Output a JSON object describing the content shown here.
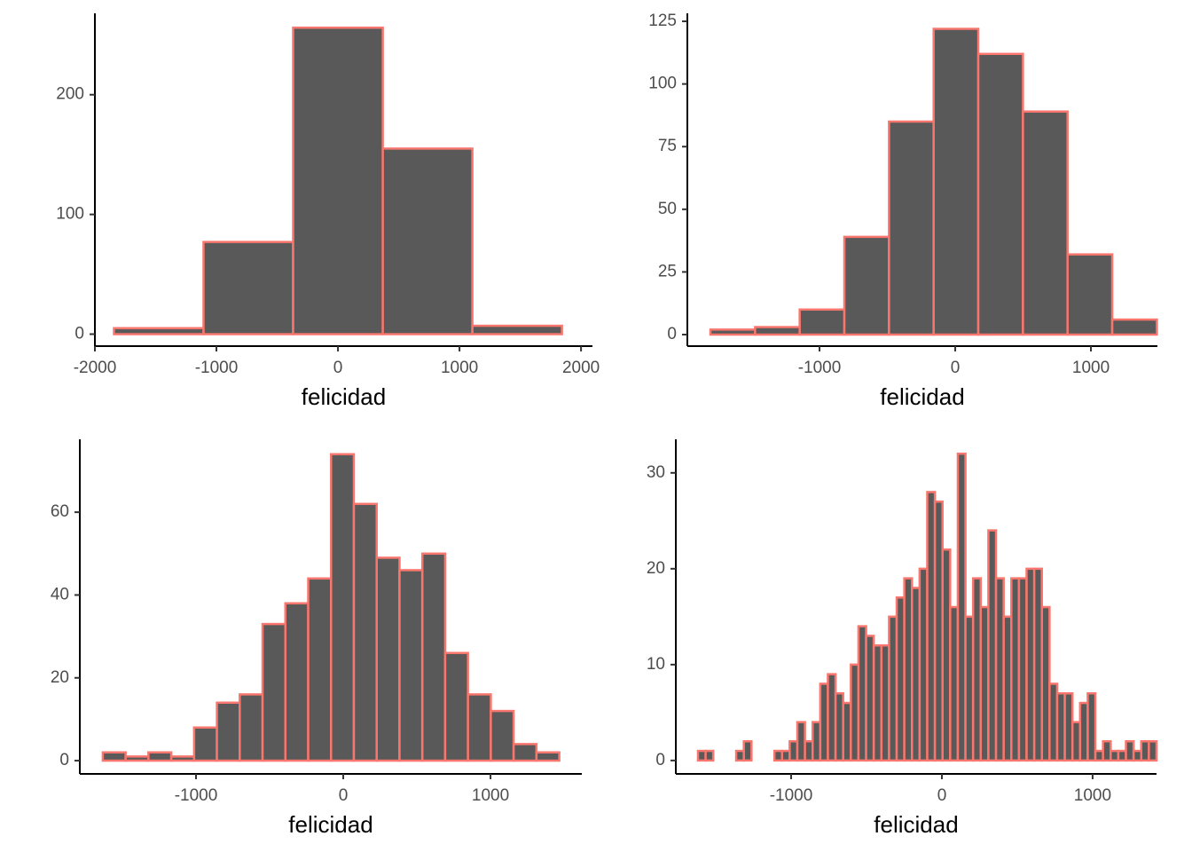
{
  "chart_data": [
    {
      "type": "histogram",
      "x_label": "felicidad",
      "color": "#595959",
      "edgecolor": "#f8766d",
      "bins": [
        -1843,
        -1106,
        -369,
        369,
        1106,
        1843
      ],
      "values": [
        5,
        77,
        256,
        155,
        7
      ],
      "xlim": [
        -2000,
        2094
      ],
      "ylim": [
        -10,
        268
      ],
      "xticks": [
        -2000,
        -1000,
        0,
        1000,
        2000
      ],
      "yticks": [
        0,
        100,
        200
      ]
    },
    {
      "type": "histogram",
      "x_label": "felicidad",
      "color": "#595959",
      "edgecolor": "#f8766d",
      "bins": [
        -1804,
        -1475,
        -1146,
        -817,
        -488,
        -159,
        170,
        499,
        828,
        1157,
        1486
      ],
      "values": [
        2,
        3,
        10,
        39,
        85,
        122,
        112,
        89,
        32,
        6
      ],
      "xlim": [
        -1974,
        1490
      ],
      "ylim": [
        -4.6,
        128.2
      ],
      "xticks": [
        -1000,
        0,
        1000
      ],
      "yticks": [
        0,
        25,
        50,
        75,
        100,
        125
      ]
    },
    {
      "type": "histogram",
      "x_label": "felicidad",
      "color": "#595959",
      "edgecolor": "#f8766d",
      "bins": [
        -1633,
        -1478,
        -1323,
        -1168,
        -1013,
        -858,
        -703,
        -548,
        -393,
        -238,
        -83,
        72,
        227,
        382,
        537,
        692,
        847,
        1002,
        1157,
        1312,
        1467
      ],
      "values": [
        2,
        1,
        2,
        1,
        8,
        14,
        16,
        33,
        38,
        44,
        74,
        62,
        49,
        46,
        50,
        26,
        16,
        12,
        4,
        2
      ],
      "xlim": [
        -1789,
        1620
      ],
      "ylim": [
        -3.2,
        77.6
      ],
      "xticks": [
        -1000,
        0,
        1000
      ],
      "yticks": [
        0,
        20,
        40,
        60
      ]
    },
    {
      "type": "histogram",
      "x_label": "felicidad",
      "color": "#595959",
      "edgecolor": "#f8766d",
      "bins": [
        -1618,
        -1567.3,
        -1516.6,
        -1465.9,
        -1415.2,
        -1364.5,
        -1313.8,
        -1263.1,
        -1212.4,
        -1161.7,
        -1111,
        -1060.3,
        -1009.6,
        -958.9,
        -908.2,
        -857.5,
        -806.8,
        -756.1,
        -705.4,
        -654.7,
        -604,
        -553.3,
        -502.6,
        -451.9,
        -401.2,
        -350.5,
        -299.8,
        -249.1,
        -198.4,
        -147.7,
        -97,
        -46.3,
        4.4,
        55.1,
        105.8,
        156.5,
        207.2,
        257.9,
        308.6,
        359.3,
        410,
        460.7,
        511.4,
        562.1,
        612.8,
        663.5,
        714.2,
        764.9,
        815.6,
        866.3,
        917,
        967.7,
        1018.4,
        1069.1,
        1119.8,
        1170.5,
        1221.2,
        1271.9,
        1322.6,
        1373.3,
        1424
      ],
      "values": [
        1,
        1,
        0,
        0,
        0,
        1,
        2,
        0,
        0,
        0,
        1,
        1,
        2,
        4,
        2,
        4,
        8,
        9,
        7,
        6,
        10,
        14,
        13,
        12,
        12,
        15,
        17,
        19,
        18,
        20,
        28,
        27,
        22,
        16,
        32,
        15,
        19,
        16,
        24,
        19,
        15,
        19,
        19,
        20,
        20,
        16,
        8,
        7,
        7,
        4,
        6,
        7,
        1,
        2,
        1,
        1,
        2,
        1,
        2,
        2
      ],
      "xlim": [
        -1765,
        1424
      ],
      "ylim": [
        -1.4,
        33.5
      ],
      "xticks": [
        -1000,
        0,
        1000
      ],
      "yticks": [
        0,
        10,
        20,
        30
      ]
    }
  ]
}
